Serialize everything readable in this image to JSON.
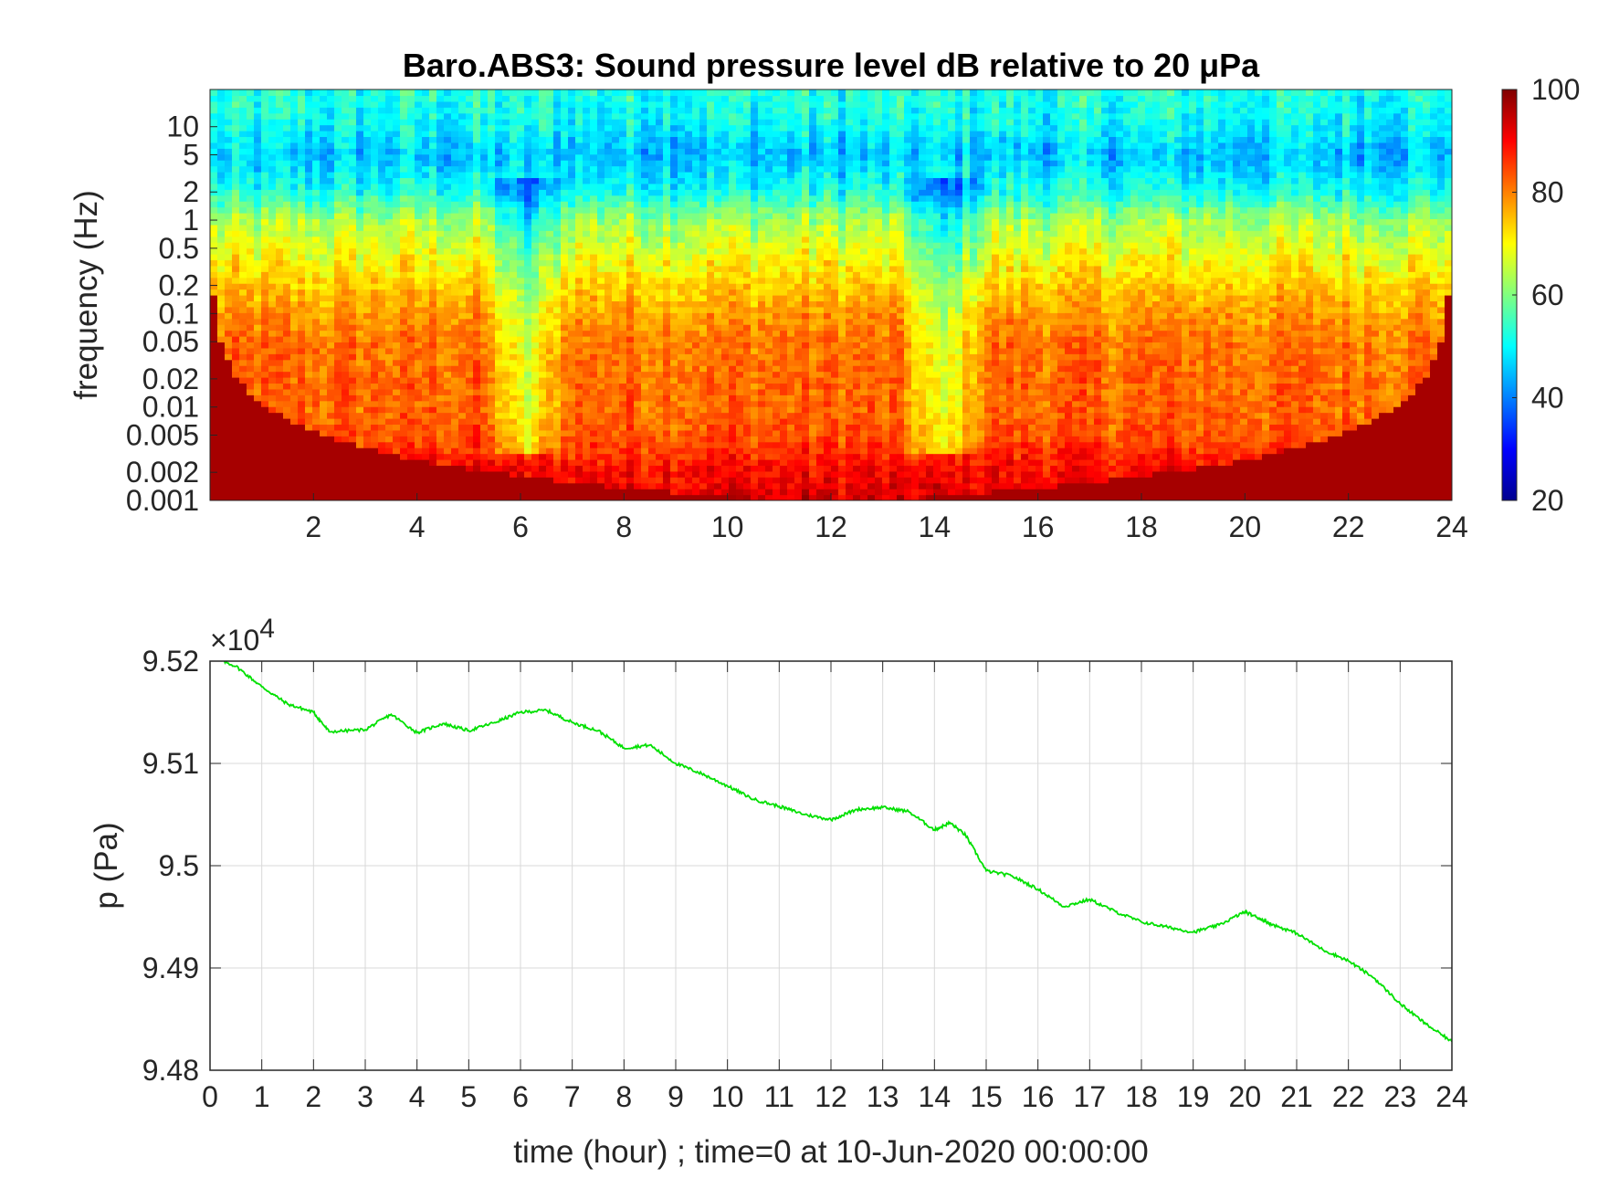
{
  "figure": {
    "title": "Baro.ABS3: Sound pressure level dB relative to 20 μPa",
    "xlabel": "time (hour) ; time=0 at 10-Jun-2020 00:00:00"
  },
  "chart_data": [
    {
      "type": "heatmap",
      "title": "Baro.ABS3: Sound pressure level dB relative to 20 μPa",
      "ylabel": "frequency (Hz)",
      "xlabel": "",
      "x_range": [
        0,
        24
      ],
      "x_ticks": [
        2,
        4,
        6,
        8,
        10,
        12,
        14,
        16,
        18,
        20,
        22,
        24
      ],
      "y_scale": "log",
      "y_range": [
        0.001,
        25
      ],
      "y_ticks": [
        0.001,
        0.002,
        0.005,
        0.01,
        0.02,
        0.05,
        0.1,
        0.2,
        0.5,
        1,
        2,
        5,
        10
      ],
      "y_tick_labels": [
        "0.001",
        "0.002",
        "0.005",
        "0.01",
        "0.02",
        "0.05",
        "0.1",
        "0.2",
        "0.5",
        "1",
        "2",
        "5",
        "10"
      ],
      "colormap": "jet",
      "colorbar": {
        "range": [
          20,
          100
        ],
        "ticks": [
          20,
          40,
          60,
          80,
          100
        ]
      },
      "level_profile": {
        "frequency_hz": [
          0.001,
          0.002,
          0.005,
          0.01,
          0.02,
          0.05,
          0.1,
          0.2,
          0.5,
          1,
          2,
          5,
          10,
          20
        ],
        "level_db": [
          93,
          90,
          84,
          82,
          82,
          81,
          78,
          74,
          68,
          63,
          52,
          45,
          50,
          52
        ]
      },
      "quiet_intervals_hour": [
        [
          5.5,
          6.7
        ],
        [
          13.5,
          14.8
        ]
      ]
    },
    {
      "type": "line",
      "ylabel": "p (Pa)",
      "xlabel": "time (hour) ; time=0 at 10-Jun-2020 00:00:00",
      "y_multiplier": "×10",
      "y_multiplier_exponent": "4",
      "xlim": [
        0,
        24
      ],
      "ylim": [
        94800,
        95200
      ],
      "x_ticks": [
        0,
        1,
        2,
        3,
        4,
        5,
        6,
        7,
        8,
        9,
        10,
        11,
        12,
        13,
        14,
        15,
        16,
        17,
        18,
        19,
        20,
        21,
        22,
        23,
        24
      ],
      "y_ticks": [
        94800,
        94900,
        95000,
        95100,
        95200
      ],
      "y_tick_labels": [
        "9.48",
        "9.49",
        "9.5",
        "9.51",
        "9.52"
      ],
      "grid": true,
      "series": [
        {
          "color": "#00e000",
          "x": [
            0,
            0.5,
            1,
            1.5,
            2,
            2.3,
            3,
            3.5,
            4,
            4.5,
            5,
            5.5,
            6,
            6.5,
            7,
            7.5,
            8,
            8.5,
            9,
            9.5,
            10,
            10.5,
            11,
            11.5,
            12,
            12.5,
            13,
            13.5,
            14,
            14.3,
            14.6,
            15,
            15.5,
            16,
            16.5,
            17,
            17.5,
            18,
            18.5,
            19,
            19.5,
            20,
            20.3,
            20.5,
            21,
            21.5,
            22,
            22.5,
            23,
            23.5,
            24
          ],
          "y": [
            95205,
            95195,
            95175,
            95158,
            95150,
            95131,
            95133,
            95148,
            95130,
            95139,
            95132,
            95140,
            95150,
            95152,
            95140,
            95132,
            95115,
            95118,
            95100,
            95090,
            95078,
            95065,
            95058,
            95050,
            95045,
            95055,
            95057,
            95053,
            95035,
            95042,
            95030,
            94995,
            94990,
            94977,
            94960,
            94967,
            94955,
            94945,
            94940,
            94935,
            94942,
            94955,
            94948,
            94943,
            94934,
            94918,
            94907,
            94890,
            94865,
            94845,
            94828
          ]
        }
      ]
    }
  ]
}
